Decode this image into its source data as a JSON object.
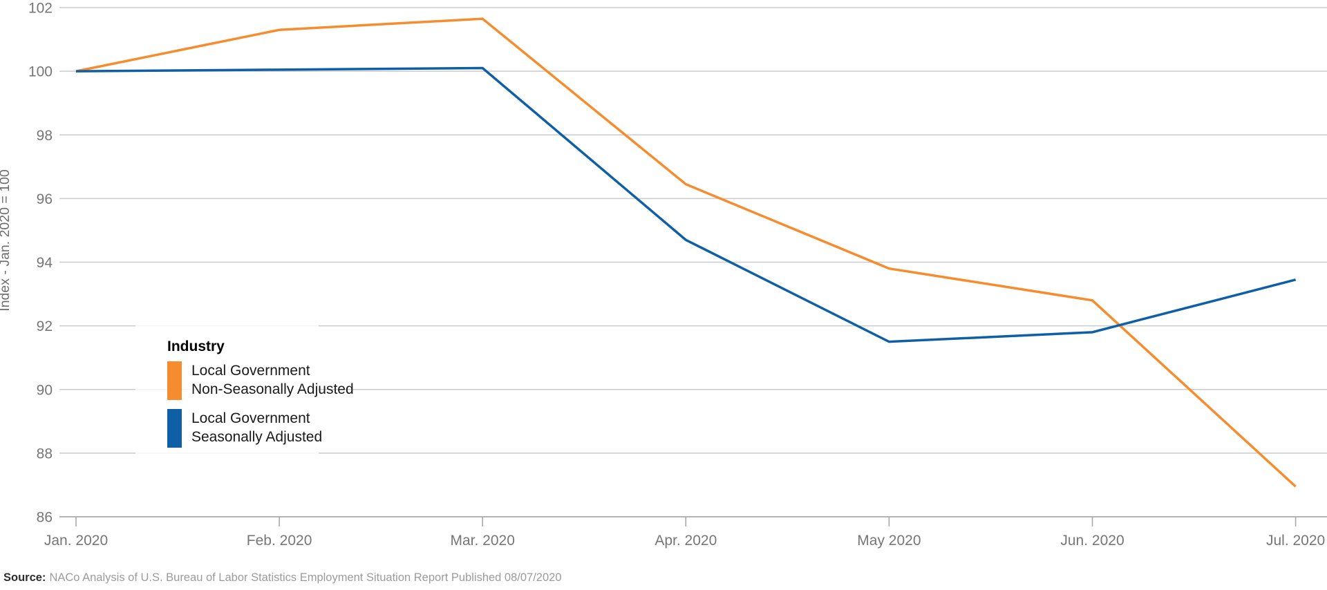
{
  "chart_data": {
    "type": "line",
    "title": "",
    "xlabel": "",
    "ylabel": "Index - Jan. 2020 = 100",
    "ylim": [
      86,
      102
    ],
    "yticks": [
      86,
      88,
      90,
      92,
      94,
      96,
      98,
      100,
      102
    ],
    "grid": true,
    "categories": [
      "Jan. 2020",
      "Feb. 2020",
      "Mar. 2020",
      "Apr. 2020",
      "May 2020",
      "Jun. 2020",
      "Jul. 2020"
    ],
    "series": [
      {
        "name": "Local Government Non-Seasonally Adjusted",
        "label_lines": [
          "Local Government",
          "Non-Seasonally Adjusted"
        ],
        "color": "#F68C2E",
        "values": [
          100,
          101.3,
          101.65,
          96.45,
          93.8,
          92.8,
          86.95
        ]
      },
      {
        "name": "Local Government Seasonally Adjusted",
        "label_lines": [
          "Local Government",
          "Seasonally Adjusted"
        ],
        "color": "#0E5FA6",
        "values": [
          100,
          100.05,
          100.1,
          94.7,
          91.5,
          91.8,
          93.45
        ]
      }
    ],
    "legend": {
      "title": "Industry",
      "position": "inside-left"
    }
  },
  "source": {
    "label": "Source:",
    "text": "NACo Analysis of U.S. Bureau of Labor Statistics Employment Situation Report Published 08/07/2020"
  },
  "colors": {
    "gridline": "#cbcbcb",
    "axis": "#a8a8a8",
    "tick_label": "#767676",
    "axis_title": "#6e6e6e",
    "legend_text": "#1a1a1a",
    "orange": "#F68C2E",
    "blue": "#0E5FA6"
  }
}
